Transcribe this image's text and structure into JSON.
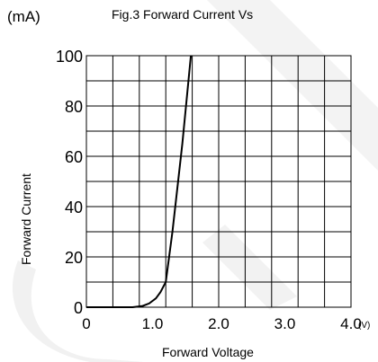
{
  "chart_data": {
    "type": "line",
    "title": "Fig.3 Forward Current Vs",
    "unit_label": "(mA)",
    "xlabel": "Forward  Voltage",
    "ylabel": "Forward Current",
    "x_unit": "(V)",
    "xlim": [
      0,
      4.0
    ],
    "ylim": [
      0,
      100
    ],
    "x_ticks": [
      {
        "value": 0,
        "label": "0"
      },
      {
        "value": 1.0,
        "label": "1.0"
      },
      {
        "value": 2.0,
        "label": "2.0"
      },
      {
        "value": 3.0,
        "label": "3.0"
      },
      {
        "value": 4.0,
        "label": "4.0"
      }
    ],
    "y_ticks": [
      {
        "value": 0,
        "label": "0"
      },
      {
        "value": 20,
        "label": "20"
      },
      {
        "value": 40,
        "label": "40"
      },
      {
        "value": 60,
        "label": "60"
      },
      {
        "value": 80,
        "label": "80"
      },
      {
        "value": 100,
        "label": "100"
      }
    ],
    "grid": true,
    "x_grid_step": 0.4,
    "y_grid_step": 10,
    "series": [
      {
        "x": [
          0.0,
          0.7,
          0.85,
          0.95,
          1.05,
          1.12,
          1.2,
          1.3,
          1.45,
          1.58
        ],
        "y": [
          0,
          0,
          0.5,
          1.5,
          3.5,
          6,
          10,
          30,
          65,
          100
        ]
      }
    ]
  }
}
